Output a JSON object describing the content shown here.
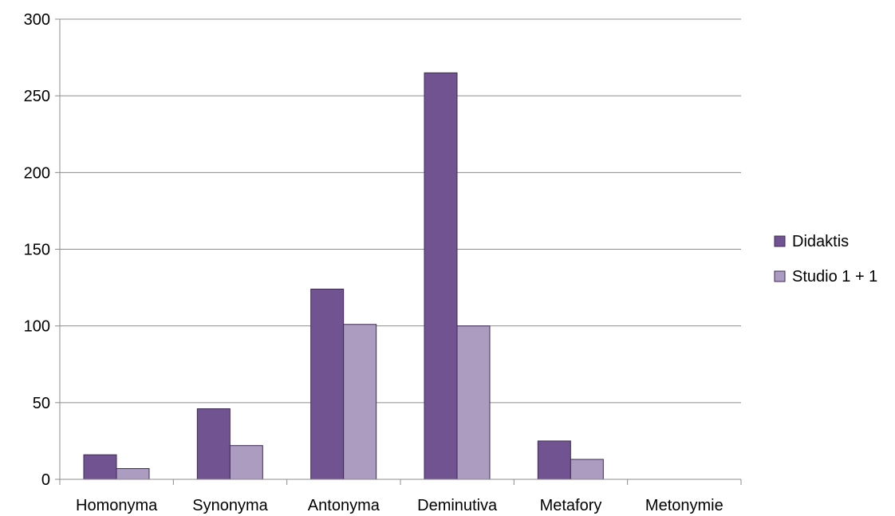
{
  "chart_data": {
    "type": "bar",
    "title": "",
    "xlabel": "",
    "ylabel": "",
    "categories": [
      "Homonyma",
      "Synonyma",
      "Antonyma",
      "Deminutiva",
      "Metafory",
      "Metonymie"
    ],
    "series": [
      {
        "name": "Didaktis",
        "color": "#705390",
        "values": [
          16,
          46,
          124,
          265,
          25,
          0
        ]
      },
      {
        "name": "Studio 1 + 1",
        "color": "#ab9cc0",
        "values": [
          7,
          22,
          101,
          100,
          13,
          0
        ]
      }
    ],
    "ylim": [
      0,
      300
    ],
    "yticks": [
      0,
      50,
      100,
      150,
      200,
      250,
      300
    ],
    "grid": true,
    "legend_position": "right"
  }
}
